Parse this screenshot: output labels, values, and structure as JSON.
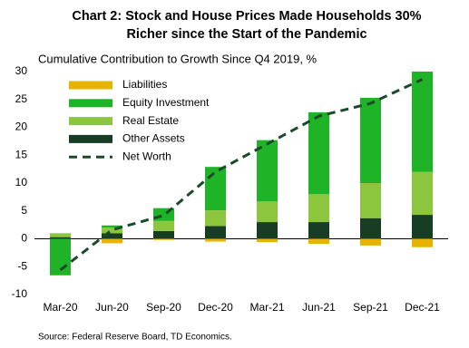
{
  "chart_data": {
    "type": "stacked-bar-line",
    "title": "Chart 2: Stock and House Prices Made Households 30%",
    "title_line2": "Richer since the Start of the Pandemic",
    "subtitle": "Cumulative Contribution to Growth Since Q4 2019, %",
    "source": "Source: Federal Reserve Board, TD Economics.",
    "categories": [
      "Mar-20",
      "Jun-20",
      "Sep-20",
      "Dec-20",
      "Mar-21",
      "Jun-21",
      "Sep-21",
      "Dec-21"
    ],
    "series": [
      {
        "name": "Liabilities",
        "color": "#e6b400",
        "kind": "bar",
        "values": [
          -0.1,
          -0.8,
          -0.2,
          -0.5,
          -0.6,
          -0.9,
          -1.2,
          -1.5
        ]
      },
      {
        "name": "Equity Investment",
        "color": "#1fb428",
        "kind": "bar",
        "values": [
          -6.5,
          0.4,
          2.3,
          7.8,
          11.0,
          14.7,
          15.3,
          18.0
        ]
      },
      {
        "name": "Real Estate",
        "color": "#8cc63f",
        "kind": "bar",
        "values": [
          0.7,
          1.0,
          1.8,
          2.8,
          3.7,
          5.0,
          6.3,
          7.7
        ]
      },
      {
        "name": "Other Assets",
        "color": "#173d25",
        "kind": "bar",
        "values": [
          0.3,
          1.0,
          1.4,
          2.3,
          3.0,
          3.0,
          3.7,
          4.3
        ]
      },
      {
        "name": "Net Worth",
        "color": "#1b4a2b",
        "kind": "line",
        "values": [
          -5.6,
          1.6,
          4.2,
          12.0,
          17.0,
          22.0,
          24.3,
          28.6
        ]
      }
    ],
    "ylim": [
      -10,
      30
    ],
    "yticks": [
      -10,
      -5,
      0,
      5,
      10,
      15,
      20,
      25,
      30
    ]
  }
}
